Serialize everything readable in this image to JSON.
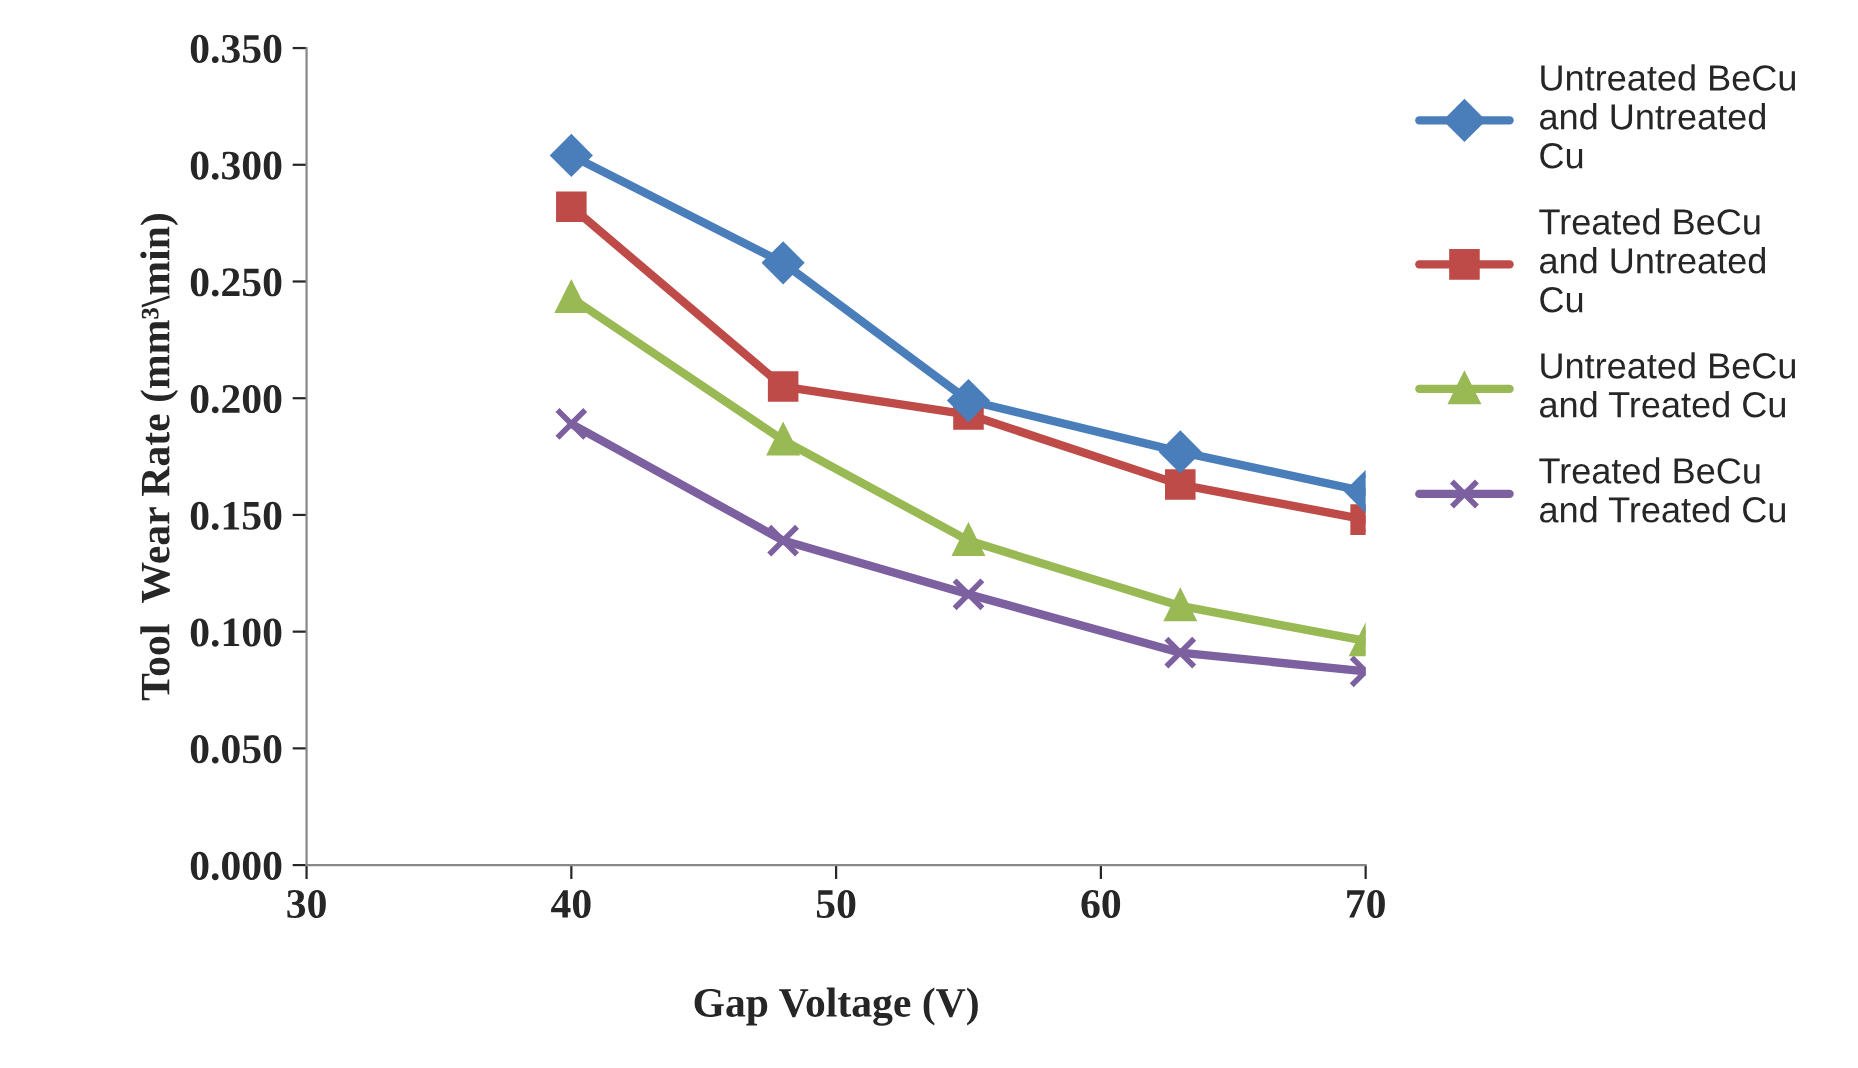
{
  "chart_data": {
    "type": "line",
    "xlabel": "Gap Voltage (V)",
    "ylabel": "Tool  Wear Rate (mm³\\min)",
    "x": [
      40,
      48,
      55,
      63,
      70
    ],
    "series": [
      {
        "name": "Untreated BeCu and Untreated Cu",
        "color": "#4a7ebb",
        "marker": "diamond",
        "values": [
          0.304,
          0.258,
          0.199,
          0.177,
          0.16
        ]
      },
      {
        "name": "Treated BeCu and Untreated Cu",
        "color": "#be4b48",
        "marker": "square",
        "values": [
          0.282,
          0.205,
          0.193,
          0.163,
          0.148
        ]
      },
      {
        "name": "Untreated BeCu and Treated Cu",
        "color": "#98b954",
        "marker": "triangle",
        "values": [
          0.243,
          0.182,
          0.139,
          0.111,
          0.096
        ]
      },
      {
        "name": "Treated BeCu and Treated Cu",
        "color": "#7d60a0",
        "marker": "cross",
        "values": [
          0.189,
          0.139,
          0.116,
          0.091,
          0.083
        ]
      }
    ],
    "xlim": [
      30,
      70
    ],
    "xticks": [
      30,
      40,
      50,
      60,
      70
    ],
    "ylim": [
      0,
      0.35
    ],
    "yticks": [
      {
        "value": 0,
        "label": "0.000"
      },
      {
        "value": 0.05,
        "label": "0.050"
      },
      {
        "value": 0.1,
        "label": "0.100"
      },
      {
        "value": 0.15,
        "label": "0.150"
      },
      {
        "value": 0.2,
        "label": "0.200"
      },
      {
        "value": 0.25,
        "label": "0.250"
      },
      {
        "value": 0.3,
        "label": "0.300"
      },
      {
        "value": 0.35,
        "label": "0.350"
      }
    ],
    "grid": false,
    "legend": "right",
    "line_style": "solid"
  }
}
